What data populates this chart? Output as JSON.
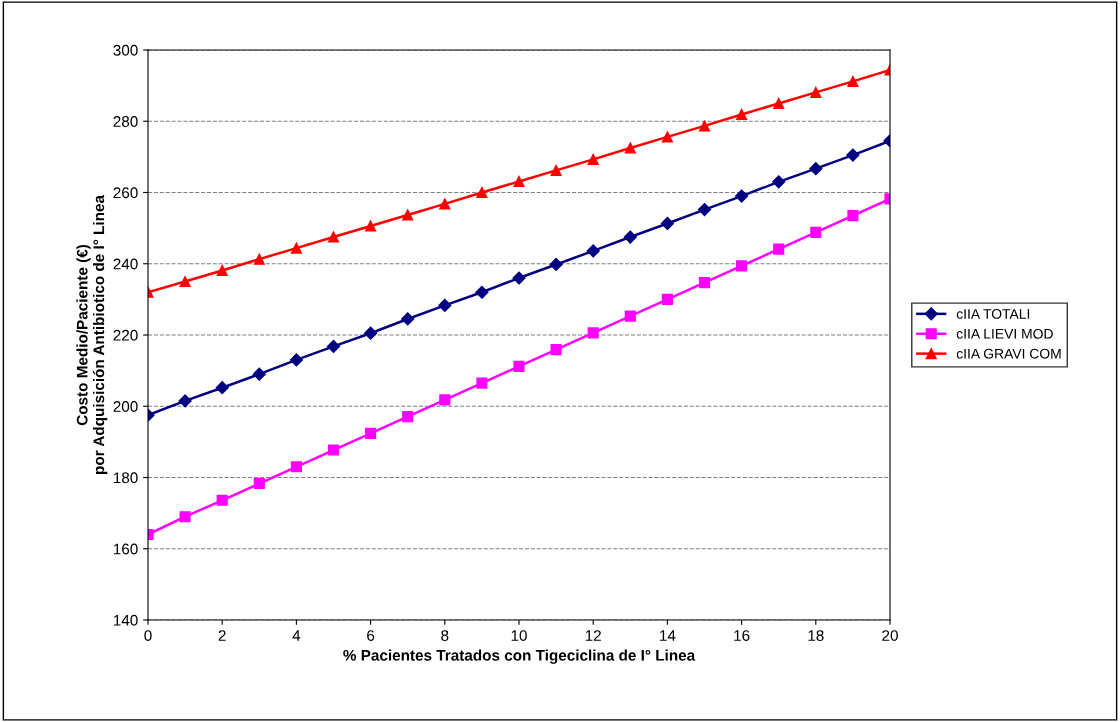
{
  "chart_data": {
    "type": "line",
    "xlabel": "% Pacientes Tratados con Tigeciclina de I° Linea",
    "ylabel": "Costo Medio/Paciente (€)\npor Adquisición Antibiotico de I° Linea",
    "x": [
      0,
      1,
      2,
      3,
      4,
      5,
      6,
      7,
      8,
      9,
      10,
      11,
      12,
      13,
      14,
      15,
      16,
      17,
      18,
      19,
      20
    ],
    "series": [
      {
        "name": "cIIA TOTALI",
        "color": "#000080",
        "marker": "diamond",
        "values": [
          197.5,
          201.5,
          205.2,
          209,
          213,
          216.8,
          220.5,
          224.5,
          228.3,
          232,
          236,
          239.8,
          243.6,
          247.5,
          251.3,
          255.2,
          259,
          263,
          266.7,
          270.5,
          274.5
        ]
      },
      {
        "name": "cIIA LIEVI MOD",
        "color": "#ff00ff",
        "marker": "square",
        "values": [
          164,
          169,
          173.6,
          178.3,
          183,
          187.7,
          192.4,
          197.1,
          201.8,
          206.5,
          211.2,
          215.9,
          220.6,
          225.3,
          230,
          234.7,
          239.4,
          244.1,
          248.8,
          253.5,
          258.2
        ]
      },
      {
        "name": "cIIA GRAVI COM",
        "color": "#ff0000",
        "marker": "triangle",
        "values": [
          232,
          235,
          238.1,
          241.3,
          244.4,
          247.5,
          250.6,
          253.7,
          256.8,
          260,
          263.1,
          266.2,
          269.3,
          272.5,
          275.6,
          278.7,
          281.9,
          285,
          288.1,
          291.2,
          294.4
        ]
      }
    ],
    "xlim": [
      0,
      20
    ],
    "xticks": [
      0,
      2,
      4,
      6,
      8,
      10,
      12,
      14,
      16,
      18,
      20
    ],
    "ylim": [
      140,
      300
    ],
    "yticks": [
      140,
      160,
      180,
      200,
      220,
      240,
      260,
      280,
      300
    ],
    "grid": "y",
    "legend": "right",
    "line_style": "solid"
  }
}
